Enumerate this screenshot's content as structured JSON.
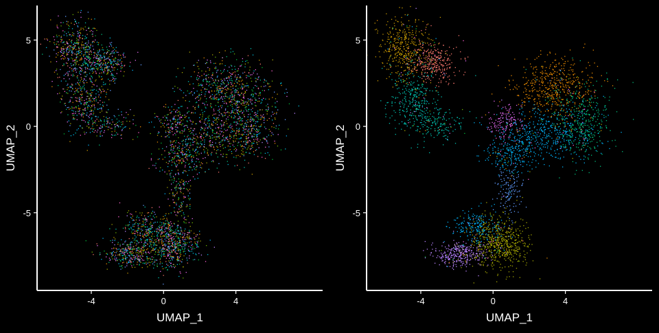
{
  "page": {
    "background": "#000000",
    "foreground": "#ffffff"
  },
  "chart_data": [
    {
      "type": "scatter",
      "title": "",
      "xlabel": "UMAP_1",
      "ylabel": "UMAP_2",
      "xlim": [
        -7.0,
        8.8
      ],
      "ylim": [
        -9.5,
        7.0
      ],
      "xticks": [
        -4,
        0,
        4
      ],
      "xtick_labels": [
        "-4",
        "0",
        "4"
      ],
      "yticks": [
        -5,
        0,
        5
      ],
      "ytick_labels": [
        "-5",
        "0",
        "5"
      ],
      "grid": false,
      "legend": "none",
      "coloring": "mixed",
      "palette": [
        "#F8766D",
        "#E58700",
        "#C99800",
        "#A3A500",
        "#6BB100",
        "#00BA38",
        "#00BF7D",
        "#00C0AF",
        "#00BCD8",
        "#00B0F6",
        "#619CFF",
        "#B983FF",
        "#E76BF3",
        "#FD61D1"
      ],
      "clusters": [
        {
          "center": [
            -4.9,
            4.5
          ],
          "spread": [
            0.7,
            0.9
          ],
          "share": 0.09,
          "color": "#C99800"
        },
        {
          "center": [
            -3.3,
            3.7
          ],
          "spread": [
            0.7,
            0.55
          ],
          "share": 0.07,
          "color": "#F8766D"
        },
        {
          "center": [
            -4.4,
            1.5
          ],
          "spread": [
            0.65,
            0.9
          ],
          "share": 0.07,
          "color": "#00C0AF"
        },
        {
          "center": [
            -3.0,
            0.1
          ],
          "spread": [
            0.8,
            0.45
          ],
          "share": 0.03,
          "color": "#00C0AF"
        },
        {
          "center": [
            3.4,
            2.3
          ],
          "spread": [
            1.1,
            0.85
          ],
          "share": 0.11,
          "color": "#E58700"
        },
        {
          "center": [
            4.9,
            0.3
          ],
          "spread": [
            0.8,
            1.1
          ],
          "share": 0.08,
          "color": "#00BF7D"
        },
        {
          "center": [
            3.0,
            -0.4
          ],
          "spread": [
            1.3,
            0.8
          ],
          "share": 0.09,
          "color": "#00B0F6"
        },
        {
          "center": [
            0.6,
            0.3
          ],
          "spread": [
            0.5,
            0.45
          ],
          "share": 0.03,
          "color": "#E76BF3"
        },
        {
          "center": [
            1.1,
            -1.6
          ],
          "spread": [
            0.75,
            0.55
          ],
          "share": 0.05,
          "color": "#00B0F6"
        },
        {
          "center": [
            0.9,
            -3.7
          ],
          "spread": [
            0.35,
            0.9
          ],
          "share": 0.03,
          "color": "#619CFF"
        },
        {
          "center": [
            0.4,
            -6.8
          ],
          "spread": [
            0.8,
            0.75
          ],
          "share": 0.13,
          "color": "#A3A500"
        },
        {
          "center": [
            -1.9,
            -7.4
          ],
          "spread": [
            0.75,
            0.4
          ],
          "share": 0.07,
          "color": "#B983FF"
        },
        {
          "center": [
            -1.0,
            -5.8
          ],
          "spread": [
            0.7,
            0.5
          ],
          "share": 0.04,
          "color": "#00B0F6"
        }
      ]
    },
    {
      "type": "scatter",
      "title": "",
      "xlabel": "UMAP_1",
      "ylabel": "UMAP_2",
      "xlim": [
        -7.0,
        8.8
      ],
      "ylim": [
        -9.5,
        7.0
      ],
      "xticks": [
        -4,
        0,
        4
      ],
      "xtick_labels": [
        "-4",
        "0",
        "4"
      ],
      "yticks": [
        -5,
        0,
        5
      ],
      "ytick_labels": [
        "-5",
        "0",
        "5"
      ],
      "grid": false,
      "legend": "none",
      "coloring": "clustered",
      "palette": [
        "#F8766D",
        "#E58700",
        "#C99800",
        "#A3A500",
        "#6BB100",
        "#00BA38",
        "#00BF7D",
        "#00C0AF",
        "#00BCD8",
        "#00B0F6",
        "#619CFF",
        "#B983FF",
        "#E76BF3",
        "#FD61D1"
      ],
      "clusters": [
        {
          "center": [
            -4.9,
            4.5
          ],
          "spread": [
            0.7,
            0.9
          ],
          "share": 0.09,
          "color": "#C99800"
        },
        {
          "center": [
            -3.3,
            3.7
          ],
          "spread": [
            0.7,
            0.55
          ],
          "share": 0.07,
          "color": "#F8766D"
        },
        {
          "center": [
            -4.4,
            1.5
          ],
          "spread": [
            0.65,
            0.9
          ],
          "share": 0.07,
          "color": "#00C0AF"
        },
        {
          "center": [
            -3.0,
            0.1
          ],
          "spread": [
            0.8,
            0.45
          ],
          "share": 0.03,
          "color": "#00C0AF"
        },
        {
          "center": [
            3.4,
            2.3
          ],
          "spread": [
            1.1,
            0.85
          ],
          "share": 0.11,
          "color": "#E58700"
        },
        {
          "center": [
            4.9,
            0.3
          ],
          "spread": [
            0.8,
            1.1
          ],
          "share": 0.08,
          "color": "#00BF7D"
        },
        {
          "center": [
            3.0,
            -0.4
          ],
          "spread": [
            1.3,
            0.8
          ],
          "share": 0.09,
          "color": "#00B0F6"
        },
        {
          "center": [
            0.6,
            0.3
          ],
          "spread": [
            0.5,
            0.45
          ],
          "share": 0.03,
          "color": "#E76BF3"
        },
        {
          "center": [
            1.1,
            -1.6
          ],
          "spread": [
            0.75,
            0.55
          ],
          "share": 0.05,
          "color": "#00B0F6"
        },
        {
          "center": [
            0.9,
            -3.7
          ],
          "spread": [
            0.35,
            0.9
          ],
          "share": 0.03,
          "color": "#619CFF"
        },
        {
          "center": [
            0.4,
            -6.8
          ],
          "spread": [
            0.8,
            0.75
          ],
          "share": 0.13,
          "color": "#A3A500"
        },
        {
          "center": [
            -1.9,
            -7.4
          ],
          "spread": [
            0.75,
            0.4
          ],
          "share": 0.07,
          "color": "#B983FF"
        },
        {
          "center": [
            -1.0,
            -5.8
          ],
          "spread": [
            0.7,
            0.5
          ],
          "share": 0.04,
          "color": "#00B0F6"
        }
      ]
    }
  ]
}
